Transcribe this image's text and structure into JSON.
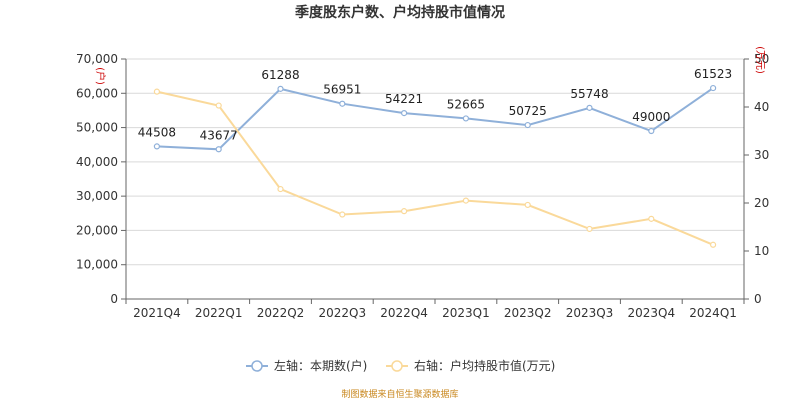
{
  "chart_data": {
    "type": "line",
    "title": "季度股东户数、户均持股市值情况",
    "categories": [
      "2021Q4",
      "2022Q1",
      "2022Q2",
      "2022Q3",
      "2022Q4",
      "2023Q1",
      "2023Q2",
      "2023Q3",
      "2023Q4",
      "2024Q1"
    ],
    "left_axis": {
      "unit": "(户)",
      "min": 0,
      "max": 70000,
      "ticks": [
        "0",
        "10,000",
        "20,000",
        "30,000",
        "40,000",
        "50,000",
        "60,000",
        "70,000"
      ]
    },
    "right_axis": {
      "unit": "(万元)",
      "min": 0,
      "max": 50,
      "ticks": [
        "0",
        "10",
        "20",
        "30",
        "40",
        "50"
      ]
    },
    "series": [
      {
        "name": "左轴：本期数(户)",
        "axis": "left",
        "color": "#8fb0d9",
        "values": [
          44508,
          43677,
          61288,
          56951,
          54221,
          52665,
          50725,
          55748,
          49000,
          61523
        ],
        "labels": [
          "44508",
          "43677",
          "61288",
          "56951",
          "54221",
          "52665",
          "50725",
          "55748",
          "49000",
          "61523"
        ]
      },
      {
        "name": "右轴：户均持股市值(万元)",
        "axis": "right",
        "color": "#fad99a",
        "values": [
          43.2,
          40.3,
          22.9,
          17.6,
          18.3,
          20.5,
          19.6,
          14.6,
          16.7,
          11.3
        ]
      }
    ],
    "grid": true,
    "legend_position": "bottom"
  },
  "source_note": "制图数据来自恒生聚源数据库"
}
